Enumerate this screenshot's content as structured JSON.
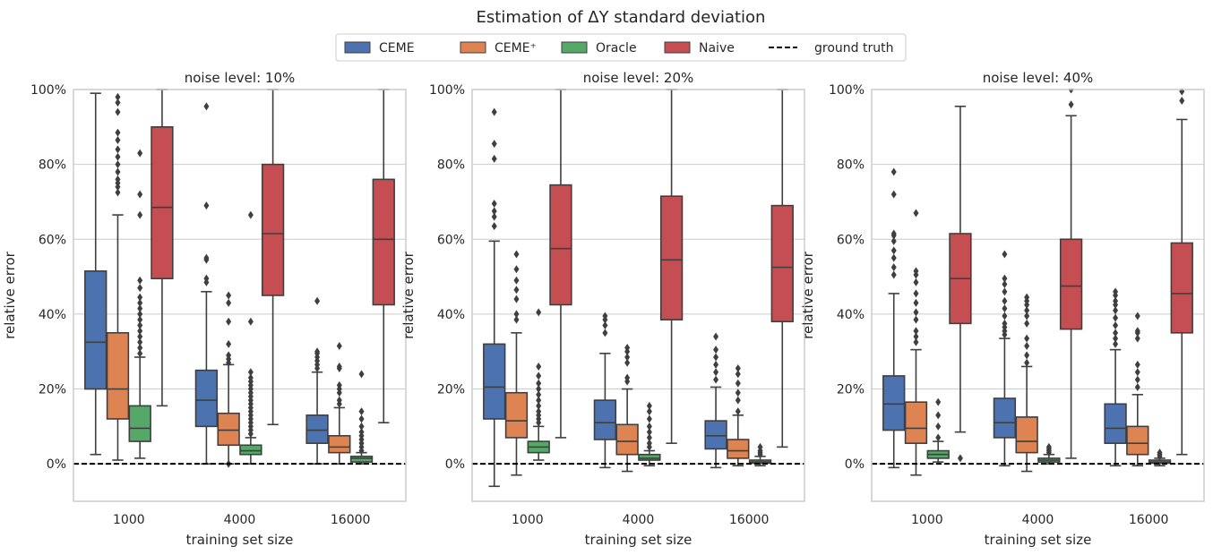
{
  "suptitle": "Estimation of ΔY standard deviation",
  "legend": {
    "placement": "top-center",
    "entries": [
      {
        "label": "CEME",
        "color": "#4c72b0",
        "kind": "box"
      },
      {
        "label": "CEME⁺",
        "color": "#dd8452",
        "kind": "box"
      },
      {
        "label": "Oracle",
        "color": "#55a868",
        "kind": "box"
      },
      {
        "label": "Naive",
        "color": "#c44e52",
        "kind": "box"
      },
      {
        "label": "ground truth",
        "color": "#000000",
        "kind": "dashed-line"
      }
    ]
  },
  "chart_data": [
    {
      "type": "box",
      "title": "noise level: 10%",
      "xlabel": "training set size",
      "ylabel": "relative error",
      "ylim": [
        -10,
        100
      ],
      "yticks": [
        0,
        20,
        40,
        60,
        80,
        100
      ],
      "ytick_labels": [
        "0%",
        "20%",
        "40%",
        "60%",
        "80%",
        "100%"
      ],
      "grid": "horizontal",
      "reference_line": {
        "label": "ground truth",
        "y": 0,
        "style": "dashed"
      },
      "categories": [
        "1000",
        "4000",
        "16000"
      ],
      "series": [
        {
          "name": "CEME",
          "boxes": [
            {
              "q1": 20,
              "median": 32.5,
              "q3": 51.5,
              "whislo": 2.5,
              "whishi": 99,
              "fliers": []
            },
            {
              "q1": 10,
              "median": 17,
              "q3": 25,
              "whislo": 0,
              "whishi": 46,
              "fliers": [
                48.5,
                49.5,
                54.5,
                55,
                69,
                95.5
              ]
            },
            {
              "q1": 5.5,
              "median": 9,
              "q3": 13,
              "whislo": 0,
              "whishi": 24.5,
              "fliers": [
                25.5,
                26.5,
                27.5,
                28.5,
                29.5,
                30,
                43.5
              ]
            }
          ]
        },
        {
          "name": "CEME⁺",
          "boxes": [
            {
              "q1": 12,
              "median": 20,
              "q3": 35,
              "whislo": 1,
              "whishi": 66.5,
              "fliers": [
                72.5,
                74,
                75,
                76,
                78,
                80,
                82,
                84,
                86.5,
                88.5,
                94,
                96.5,
                98
              ]
            },
            {
              "q1": 5,
              "median": 9,
              "q3": 13.5,
              "whislo": 0,
              "whishi": 26.5,
              "fliers": [
                27,
                28,
                29,
                32,
                38,
                43,
                45,
                0
              ]
            },
            {
              "q1": 3,
              "median": 4.5,
              "q3": 7.5,
              "whislo": 0,
              "whishi": 15,
              "fliers": [
                16,
                17,
                19,
                20,
                21,
                25.5,
                26,
                31.5
              ]
            }
          ]
        },
        {
          "name": "Oracle",
          "boxes": [
            {
              "q1": 6,
              "median": 9.5,
              "q3": 15.5,
              "whislo": 1.5,
              "whishi": 28.5,
              "fliers": [
                29.5,
                31,
                32.5,
                34,
                35.5,
                37,
                38.5,
                40,
                41.5,
                43,
                44.5,
                47,
                49,
                66.5,
                72,
                83
              ]
            },
            {
              "q1": 2.5,
              "median": 3.5,
              "q3": 5,
              "whislo": 0,
              "whishi": 7,
              "fliers": [
                8,
                9,
                10,
                11,
                12,
                13,
                14,
                15,
                16,
                17,
                18,
                19,
                20,
                21,
                22,
                23,
                24.5,
                38,
                66.5
              ]
            },
            {
              "q1": 0.5,
              "median": 1.5,
              "q3": 2,
              "whislo": 0,
              "whishi": 3,
              "fliers": [
                3.5,
                4.5,
                5.5,
                6.5,
                7.5,
                8.5,
                10,
                12,
                14,
                24
              ]
            }
          ]
        },
        {
          "name": "Naive",
          "boxes": [
            {
              "q1": 49.5,
              "median": 68.5,
              "q3": 90,
              "whislo": 15.5,
              "whishi": 100,
              "fliers": []
            },
            {
              "q1": 45,
              "median": 61.5,
              "q3": 80,
              "whislo": 10.5,
              "whishi": 100,
              "fliers": []
            },
            {
              "q1": 42.5,
              "median": 60,
              "q3": 76,
              "whislo": 11,
              "whishi": 100,
              "fliers": []
            }
          ]
        }
      ]
    },
    {
      "type": "box",
      "title": "noise level: 20%",
      "xlabel": "training set size",
      "ylabel": "relative error",
      "ylim": [
        -10,
        100
      ],
      "yticks": [
        0,
        20,
        40,
        60,
        80,
        100
      ],
      "ytick_labels": [
        "0%",
        "20%",
        "40%",
        "60%",
        "80%",
        "100%"
      ],
      "grid": "horizontal",
      "reference_line": {
        "label": "ground truth",
        "y": 0,
        "style": "dashed"
      },
      "categories": [
        "1000",
        "4000",
        "16000"
      ],
      "series": [
        {
          "name": "CEME",
          "boxes": [
            {
              "q1": 12,
              "median": 20.5,
              "q3": 32,
              "whislo": -6,
              "whishi": 59.5,
              "fliers": [
                63.5,
                66,
                67.5,
                69.5,
                81.5,
                85.5,
                94
              ]
            },
            {
              "q1": 6.5,
              "median": 11,
              "q3": 17,
              "whislo": -1,
              "whishi": 29.5,
              "fliers": [
                35,
                37,
                38.5,
                39.5
              ]
            },
            {
              "q1": 4,
              "median": 7.5,
              "q3": 11.5,
              "whislo": -1,
              "whishi": 20.5,
              "fliers": [
                22.5,
                24.5,
                26.5,
                28.5,
                30.5,
                34
              ]
            }
          ]
        },
        {
          "name": "CEME⁺",
          "boxes": [
            {
              "q1": 7,
              "median": 11.5,
              "q3": 19,
              "whislo": -3,
              "whishi": 35,
              "fliers": [
                38.5,
                40,
                44,
                46.5,
                49,
                52,
                56
              ]
            },
            {
              "q1": 2.5,
              "median": 6,
              "q3": 10.5,
              "whislo": -2,
              "whishi": 20,
              "fliers": [
                22,
                23,
                27,
                28.5,
                30,
                31
              ]
            },
            {
              "q1": 1.5,
              "median": 3.5,
              "q3": 6.5,
              "whislo": -0.5,
              "whishi": 13,
              "fliers": [
                14,
                17,
                19,
                21.5,
                24,
                25.5
              ]
            }
          ]
        },
        {
          "name": "Oracle",
          "boxes": [
            {
              "q1": 3,
              "median": 4.5,
              "q3": 6,
              "whislo": 1,
              "whishi": 10,
              "fliers": [
                11,
                12,
                13,
                14,
                15.5,
                17,
                18.5,
                20,
                21.5,
                23.5,
                26,
                40.5
              ]
            },
            {
              "q1": 1,
              "median": 1.5,
              "q3": 2.5,
              "whislo": -0.5,
              "whishi": 3.5,
              "fliers": [
                4.5,
                5.5,
                7,
                8.5,
                10,
                12,
                14,
                15.5
              ]
            },
            {
              "q1": 0.2,
              "median": 0.5,
              "q3": 1,
              "whislo": -0.5,
              "whishi": 2,
              "fliers": [
                2.5,
                3,
                3.5,
                4.5
              ]
            }
          ]
        },
        {
          "name": "Naive",
          "boxes": [
            {
              "q1": 42.5,
              "median": 57.5,
              "q3": 74.5,
              "whislo": 7,
              "whishi": 100,
              "fliers": []
            },
            {
              "q1": 38.5,
              "median": 54.5,
              "q3": 71.5,
              "whislo": 5.5,
              "whishi": 100,
              "fliers": []
            },
            {
              "q1": 38,
              "median": 52.5,
              "q3": 69,
              "whislo": 4.5,
              "whishi": 100,
              "fliers": []
            }
          ]
        }
      ]
    },
    {
      "type": "box",
      "title": "noise level: 40%",
      "xlabel": "training set size",
      "ylabel": "relative error",
      "ylim": [
        -10,
        100
      ],
      "yticks": [
        0,
        20,
        40,
        60,
        80,
        100
      ],
      "ytick_labels": [
        "0%",
        "20%",
        "40%",
        "60%",
        "80%",
        "100%"
      ],
      "grid": "horizontal",
      "reference_line": {
        "label": "ground truth",
        "y": 0,
        "style": "dashed"
      },
      "categories": [
        "1000",
        "4000",
        "16000"
      ],
      "series": [
        {
          "name": "CEME",
          "boxes": [
            {
              "q1": 9,
              "median": 16,
              "q3": 23.5,
              "whislo": -1,
              "whishi": 45.5,
              "fliers": [
                50.5,
                52.5,
                55,
                57,
                59.5,
                61,
                61.5,
                72,
                78
              ]
            },
            {
              "q1": 7,
              "median": 11,
              "q3": 17.5,
              "whislo": -0.5,
              "whishi": 33.5,
              "fliers": [
                34.5,
                35.5,
                36.5,
                37.5,
                39.5,
                41.5,
                43.5,
                46,
                48,
                49.5,
                56
              ]
            },
            {
              "q1": 5.5,
              "median": 9.5,
              "q3": 16,
              "whislo": -0.5,
              "whishi": 30.5,
              "fliers": [
                32,
                33.5,
                35,
                37,
                39,
                41,
                42.5,
                43.5,
                45,
                46
              ]
            }
          ]
        },
        {
          "name": "CEME⁺",
          "boxes": [
            {
              "q1": 5.5,
              "median": 9.5,
              "q3": 16.5,
              "whislo": -3,
              "whishi": 30.5,
              "fliers": [
                32.5,
                34,
                35.5,
                38.5,
                40.5,
                43,
                45.5,
                48.5,
                50.5,
                51.5,
                67
              ]
            },
            {
              "q1": 3,
              "median": 6,
              "q3": 12.5,
              "whislo": -2,
              "whishi": 26,
              "fliers": [
                27,
                29,
                31.5,
                33.5,
                37.5,
                39.5,
                41,
                42.5,
                43.5,
                44.5
              ]
            },
            {
              "q1": 2.5,
              "median": 5.5,
              "q3": 10,
              "whislo": -0.5,
              "whishi": 18.5,
              "fliers": [
                20.5,
                22.5,
                24.5,
                26.5,
                33.5,
                35,
                35.5,
                39.5
              ]
            }
          ]
        },
        {
          "name": "Oracle",
          "boxes": [
            {
              "q1": 1.5,
              "median": 2.5,
              "q3": 3.5,
              "whislo": 0.5,
              "whishi": 6,
              "fliers": [
                7,
                10,
                13,
                16.5
              ]
            },
            {
              "q1": 0.5,
              "median": 1,
              "q3": 1.5,
              "whislo": 0,
              "whishi": 2.5,
              "fliers": [
                3,
                3.5,
                4,
                4.5
              ]
            },
            {
              "q1": 0.2,
              "median": 0.5,
              "q3": 1,
              "whislo": -0.5,
              "whishi": 1.5,
              "fliers": [
                2,
                2.5,
                3
              ]
            }
          ]
        },
        {
          "name": "Naive",
          "boxes": [
            {
              "q1": 37.5,
              "median": 49.5,
              "q3": 61.5,
              "whislo": 8.5,
              "whishi": 95.5,
              "fliers": [
                1.5
              ]
            },
            {
              "q1": 36,
              "median": 47.5,
              "q3": 60,
              "whislo": 1.5,
              "whishi": 93,
              "fliers": [
                96,
                100
              ]
            },
            {
              "q1": 35,
              "median": 45.5,
              "q3": 59,
              "whislo": 2.5,
              "whishi": 92,
              "fliers": [
                97,
                99.5
              ]
            }
          ]
        }
      ]
    }
  ]
}
